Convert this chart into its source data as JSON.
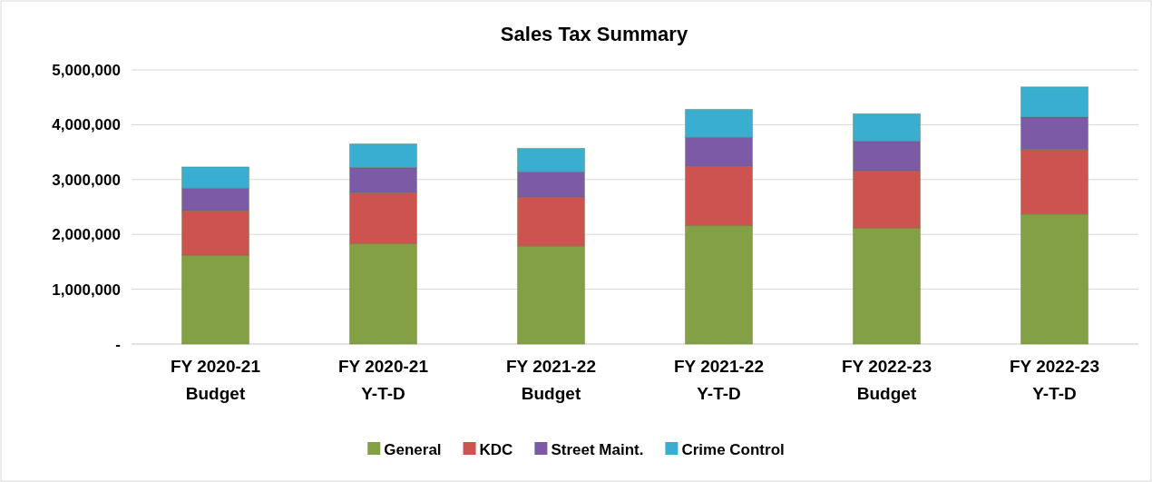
{
  "chart_data": {
    "type": "bar",
    "title": "Sales Tax Summary",
    "stacked": true,
    "categories": [
      "FY 2020-21 Budget",
      "FY 2020-21 Y-T-D",
      "FY 2021-22 Budget",
      "FY 2021-22 Y-T-D",
      "FY 2022-23 Budget",
      "FY 2022-23 Y-T-D"
    ],
    "series": [
      {
        "name": "General",
        "color": "#83a044",
        "values": [
          1620000,
          1830000,
          1790000,
          2160000,
          2120000,
          2370000
        ]
      },
      {
        "name": "KDC",
        "color": "#cd5350",
        "values": [
          810000,
          930000,
          890000,
          1080000,
          1040000,
          1180000
        ]
      },
      {
        "name": "Street Maint.",
        "color": "#7d5aa6",
        "values": [
          410000,
          460000,
          460000,
          530000,
          540000,
          590000
        ]
      },
      {
        "name": "Crime Control",
        "color": "#3aaed0",
        "values": [
          390000,
          430000,
          430000,
          510000,
          500000,
          550000
        ]
      }
    ],
    "ylim": [
      0,
      5000000
    ],
    "yticks": [
      {
        "value": 0,
        "label": "-"
      },
      {
        "value": 1000000,
        "label": "1,000,000"
      },
      {
        "value": 2000000,
        "label": "2,000,000"
      },
      {
        "value": 3000000,
        "label": "3,000,000"
      },
      {
        "value": 4000000,
        "label": "4,000,000"
      },
      {
        "value": 5000000,
        "label": "5,000,000"
      }
    ],
    "grid": "y",
    "legend": "bottom"
  }
}
